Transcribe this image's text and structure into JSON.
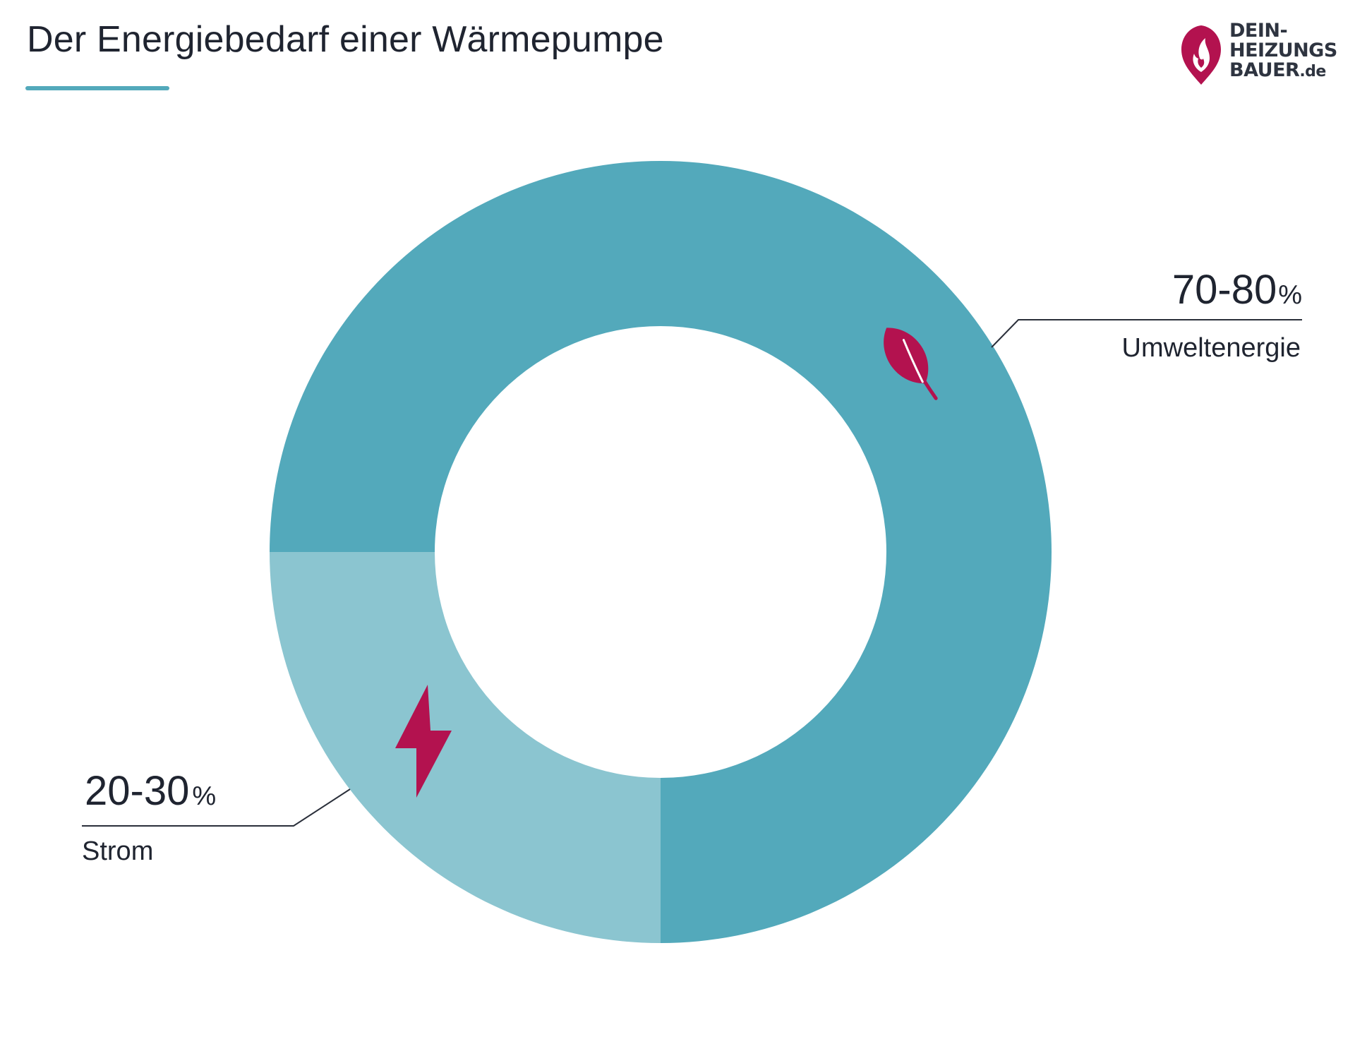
{
  "title": "Der Energiebedarf einer Wärmepumpe",
  "brand": {
    "line1": "DEIN-",
    "line2": "HEIZUNGS",
    "line3": "BAUER",
    "tld": ".de",
    "accent_color": "#b3124f"
  },
  "chart_data": {
    "type": "pie",
    "variant": "donut",
    "title": "Der Energiebedarf einer Wärmepumpe",
    "series": [
      {
        "name": "Umweltenergie",
        "label": "70-80",
        "unit": "%",
        "value": 75,
        "color": "#53a9bb",
        "icon": "leaf-icon"
      },
      {
        "name": "Strom",
        "label": "20-30",
        "unit": "%",
        "value": 25,
        "color": "#8bc5d0",
        "icon": "lightning-icon"
      }
    ],
    "icon_color": "#b3124f",
    "start_angle_deg": 180
  }
}
